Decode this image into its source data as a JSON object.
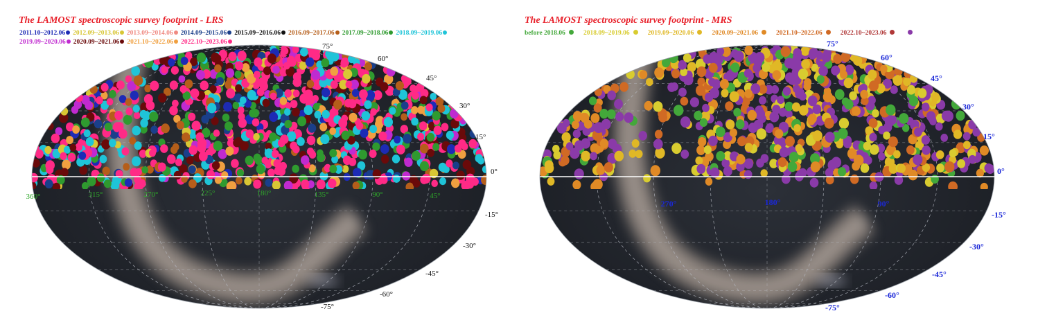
{
  "colors": {
    "sky_dark": "#1b1e24",
    "sky_mid": "#2c3038",
    "milky_way": "#c9b7a8",
    "grid": "#b8bcc4",
    "equator": "#ffffff",
    "title_red": "#e8202a",
    "ra_label_lrs": "#2fa82a",
    "ra_label_mrs": "#1b28d8",
    "dec_label_lrs": "#111111",
    "dec_label_mrs": "#1b28d8"
  },
  "panels": [
    {
      "id": "lrs",
      "title": "The LAMOST spectroscopic survey footprint - LRS",
      "legend": [
        {
          "label": "2011.10~2012.06",
          "color": "#1d2bb5"
        },
        {
          "label": "2012.09~2013.06",
          "color": "#d8c634"
        },
        {
          "label": "2013.09~2014.06",
          "color": "#f08a82"
        },
        {
          "label": "2014.09~2015.06",
          "color": "#1a3f8a"
        },
        {
          "label": "2015.09~2016.06",
          "color": "#111111"
        },
        {
          "label": "2016.09~2017.06",
          "color": "#b55e1a"
        },
        {
          "label": "2017.09~2018.06",
          "color": "#2f9a2f"
        },
        {
          "label": "2018.09~2019.06",
          "color": "#1fc4d8"
        },
        {
          "label": "2019.09~2020.06",
          "color": "#c02ad0"
        },
        {
          "label": "2020.09~2021.06",
          "color": "#6a0a0a"
        },
        {
          "label": "2021.10~2022.06",
          "color": "#f0a040"
        },
        {
          "label": "2022.10~2023.06",
          "color": "#ff2a86"
        }
      ],
      "ra_labels": [
        "360°",
        "315°",
        "270°",
        "225°",
        "180°",
        "135°",
        "90°",
        "45°"
      ],
      "dec_labels_north": [
        "75°",
        "60°",
        "45°",
        "30°",
        "15°",
        "0°"
      ],
      "dec_labels_south": [
        "-15°",
        "-30°",
        "-45°",
        "-60°",
        "-75°"
      ]
    },
    {
      "id": "mrs",
      "title": "The LAMOST spectroscopic survey footprint - MRS",
      "legend": [
        {
          "label": "before 2018.06",
          "color": "#43a83a"
        },
        {
          "label": "2018.09~2019.06",
          "color": "#d8cc30"
        },
        {
          "label": "2019.09~2020.06",
          "color": "#e0b826"
        },
        {
          "label": "2020.09~2021.06",
          "color": "#e08a26"
        },
        {
          "label": "2021.10~2022.06",
          "color": "#d06a24"
        },
        {
          "label": "2022.10~2023.06",
          "color": "#b03838"
        },
        {
          "label": "",
          "color": "#8a3aa8"
        }
      ],
      "ra_labels": [
        "270°",
        "180°",
        "90°"
      ],
      "dec_labels_north": [
        "75°",
        "60°",
        "45°",
        "30°",
        "15°",
        "0°"
      ],
      "dec_labels_south": [
        "-15°",
        "-30°",
        "-45°",
        "-60°",
        "-75°"
      ]
    }
  ]
}
